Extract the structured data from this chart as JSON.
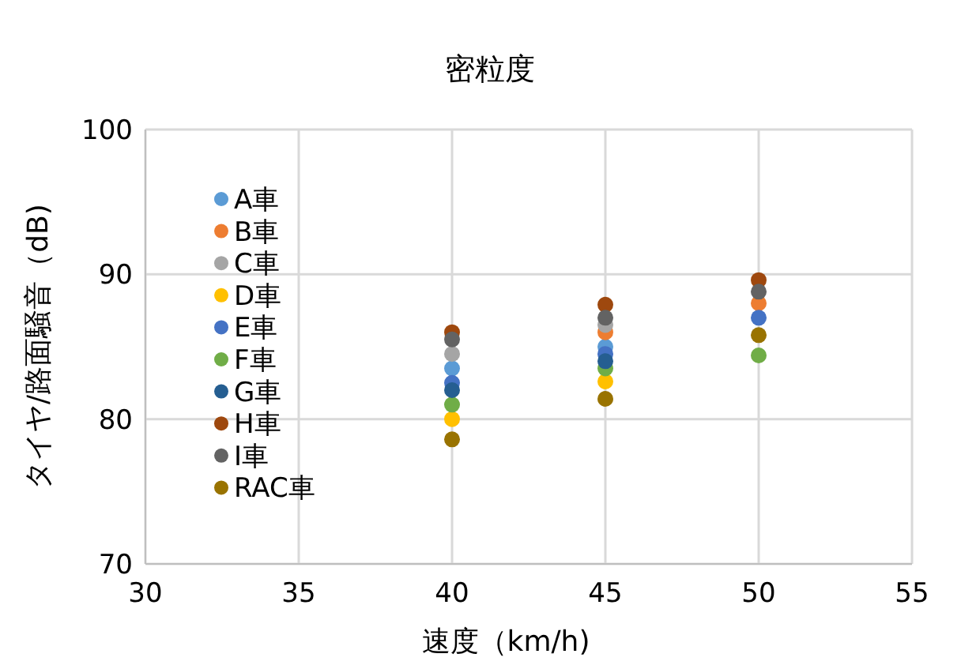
{
  "chart_data": {
    "type": "scatter",
    "title": "密粒度",
    "xlabel": "速度（km/h)",
    "ylabel": "タイヤ/路面騒音（dB)",
    "x": [
      40,
      45,
      50
    ],
    "xlim": [
      30,
      55
    ],
    "xticks": [
      30,
      35,
      40,
      45,
      50,
      55
    ],
    "ylim": [
      70,
      100
    ],
    "yticks": [
      70,
      80,
      90,
      100
    ],
    "grid": true,
    "legend": "top left",
    "marker": "circle",
    "series": [
      {
        "name": "A車",
        "color": "#5b9bd5",
        "values": [
          83.5,
          85.0,
          null
        ]
      },
      {
        "name": "B車",
        "color": "#ed7d31",
        "values": [
          null,
          86.0,
          88.0
        ]
      },
      {
        "name": "C車",
        "color": "#a5a5a5",
        "values": [
          84.5,
          86.5,
          null
        ]
      },
      {
        "name": "D車",
        "color": "#ffc000",
        "values": [
          80.0,
          82.6,
          null
        ]
      },
      {
        "name": "E車",
        "color": "#4472c4",
        "values": [
          82.5,
          84.5,
          87.0
        ]
      },
      {
        "name": "F車",
        "color": "#70ad47",
        "values": [
          81.0,
          83.5,
          84.4
        ]
      },
      {
        "name": "G車",
        "color": "#255e91",
        "values": [
          82.0,
          84.0,
          null
        ]
      },
      {
        "name": "H車",
        "color": "#9e480e",
        "values": [
          86.0,
          87.9,
          89.6
        ]
      },
      {
        "name": "I車",
        "color": "#636363",
        "values": [
          85.5,
          87.0,
          88.8
        ]
      },
      {
        "name": "RAC車",
        "color": "#997300",
        "values": [
          78.6,
          81.4,
          85.8
        ]
      }
    ]
  }
}
